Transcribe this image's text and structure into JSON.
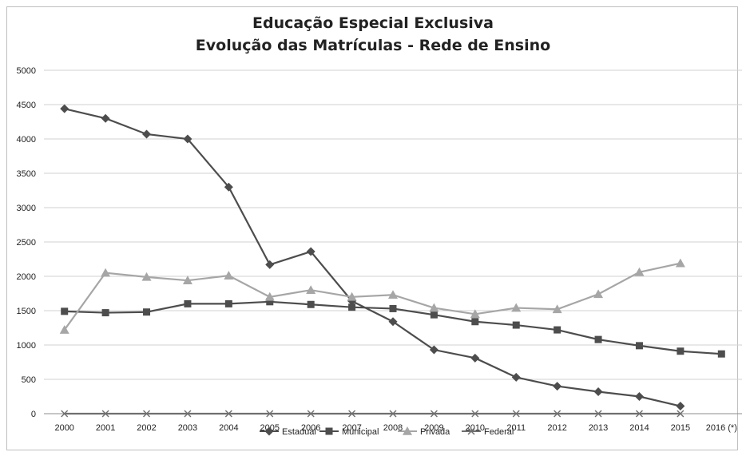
{
  "chart_data": {
    "type": "line",
    "title": "Educação Especial Exclusiva",
    "subtitle": "Evolução das Matrículas - Rede de Ensino",
    "xlabel": "",
    "ylabel": "",
    "categories": [
      "2000",
      "2001",
      "2002",
      "2003",
      "2004",
      "2005",
      "2006",
      "2007",
      "2008",
      "2009",
      "2010",
      "2011",
      "2012",
      "2013",
      "2014",
      "2015",
      "2016 (*)"
    ],
    "ylim": [
      0,
      5000
    ],
    "yticks": [
      "0",
      "500",
      "1000",
      "1500",
      "2000",
      "2500",
      "3000",
      "3500",
      "4000",
      "4500",
      "5000"
    ],
    "grid": true,
    "legend_position": "bottom",
    "series": [
      {
        "name": "Estadual",
        "marker": "diamond",
        "color": "#4d4d4d",
        "values": [
          4440,
          4300,
          4070,
          4000,
          3300,
          2170,
          2360,
          1640,
          1340,
          930,
          810,
          530,
          400,
          320,
          250,
          110,
          null
        ]
      },
      {
        "name": "Municipal",
        "marker": "square",
        "color": "#4d4d4d",
        "values": [
          1490,
          1470,
          1480,
          1600,
          1600,
          1630,
          1590,
          1550,
          1530,
          1440,
          1340,
          1290,
          1220,
          1080,
          990,
          910,
          870
        ]
      },
      {
        "name": "Privada",
        "marker": "triangle",
        "color": "#a6a6a6",
        "values": [
          1220,
          2050,
          1990,
          1940,
          2010,
          1700,
          1800,
          1700,
          1730,
          1540,
          1450,
          1540,
          1520,
          1740,
          2060,
          2190,
          null
        ]
      },
      {
        "name": "Federal",
        "marker": "x",
        "color": "#6f6f6f",
        "values": [
          0,
          0,
          0,
          0,
          0,
          0,
          0,
          0,
          0,
          0,
          0,
          0,
          0,
          0,
          0,
          0,
          null
        ]
      }
    ]
  }
}
